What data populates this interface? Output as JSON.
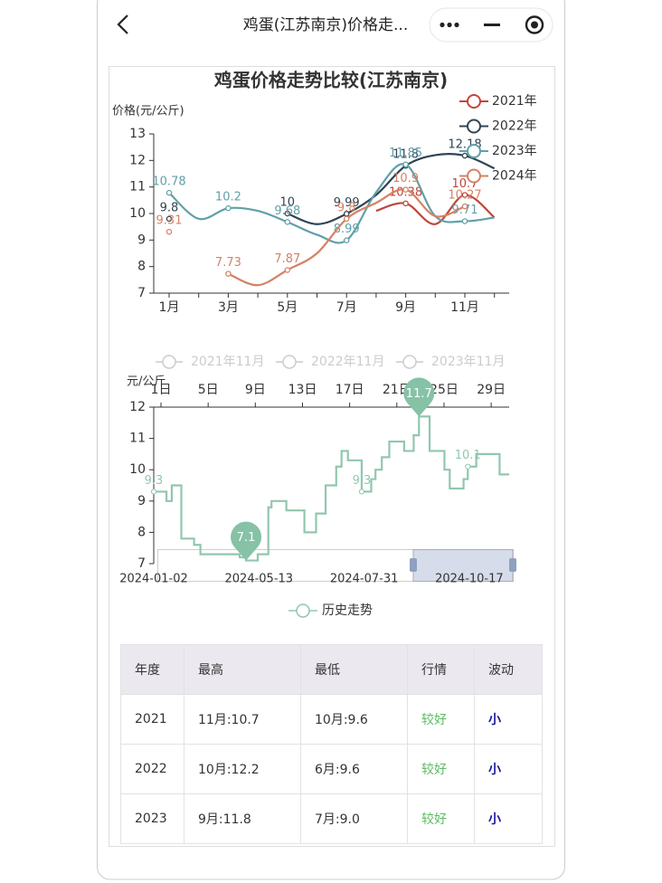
{
  "header": {
    "title": "鸡蛋(江苏南京)价格走..."
  },
  "chart_data": [
    {
      "type": "line",
      "title": "鸡蛋价格走势比较(江苏南京)",
      "y_label": "价格(元/公斤)",
      "categories": [
        "1月",
        null,
        "3月",
        null,
        "5月",
        null,
        "7月",
        null,
        "9月",
        null,
        "11月",
        null
      ],
      "series": [
        {
          "name": "2021年",
          "color": "#c0463c",
          "values": [
            null,
            null,
            null,
            null,
            null,
            null,
            null,
            10.1,
            10.38,
            9.6,
            10.7,
            9.85
          ]
        },
        {
          "name": "2022年",
          "color": "#2f4554",
          "values": [
            9.8,
            null,
            null,
            null,
            10,
            9.6,
            9.99,
            10.7,
            11.8,
            12.2,
            12.18,
            11.7
          ]
        },
        {
          "name": "2023年",
          "color": "#61a0a8",
          "values": [
            10.78,
            9.8,
            10.2,
            10.1,
            9.68,
            9.2,
            8.99,
            10.8,
            11.85,
            9.9,
            9.71,
            9.85
          ]
        },
        {
          "name": "2024年",
          "color": "#d48265",
          "values": [
            9.31,
            null,
            7.73,
            7.3,
            7.87,
            8.5,
            9.8,
            10.4,
            10.9,
            9.9,
            10.27,
            null
          ]
        }
      ],
      "ylim": [
        7,
        13
      ],
      "yticks": [
        7,
        8,
        9,
        10,
        11,
        12,
        13
      ],
      "legend": "top-right",
      "smooth": true,
      "grid": false
    },
    {
      "type": "step",
      "y_label": "元/公斤",
      "faded_legend": [
        "2021年11月",
        "2022年11月",
        "2023年11月"
      ],
      "day_axis": [
        "1日",
        null,
        null,
        null,
        "5日",
        null,
        null,
        null,
        "9日",
        null,
        null,
        null,
        "13日",
        null,
        null,
        null,
        "17日",
        null,
        null,
        null,
        "21日",
        null,
        null,
        null,
        "25日",
        null,
        null,
        null,
        "29日",
        null
      ],
      "series": [
        {
          "name": "历史走势",
          "color": "#91c7ae",
          "x": [
            "2024-01-02",
            "2024-01-14",
            "2024-01-19",
            "2024-01-28",
            "2024-02-09",
            "2024-02-15",
            "2024-03-23",
            "2024-03-29",
            "2024-04-09",
            "2024-04-19",
            "2024-04-22",
            "2024-05-06",
            "2024-05-23",
            "2024-06-03",
            "2024-06-12",
            "2024-06-22",
            "2024-06-27",
            "2024-07-03",
            "2024-07-16",
            "2024-07-25",
            "2024-07-29",
            "2024-08-04",
            "2024-08-11",
            "2024-08-25",
            "2024-09-03",
            "2024-09-08",
            "2024-09-18",
            "2024-10-02",
            "2024-10-07",
            "2024-10-20",
            "2024-10-24",
            "2024-11-01",
            "2024-11-23",
            "2024-12-02"
          ],
          "values": [
            9.3,
            9.0,
            9.5,
            7.8,
            7.6,
            7.3,
            7.2,
            7.1,
            7.3,
            8.8,
            9.0,
            8.7,
            8.0,
            8.6,
            9.5,
            10.1,
            10.6,
            10.3,
            9.3,
            9.7,
            10.0,
            10.4,
            10.9,
            10.6,
            11.1,
            11.7,
            10.6,
            10.0,
            9.4,
            9.7,
            10.1,
            10.5,
            9.85,
            9.85
          ]
        }
      ],
      "xlim": [
        "2024-01-02",
        "2024-12-02"
      ],
      "ylim": [
        7,
        12
      ],
      "yticks": [
        7,
        8,
        9,
        10,
        11,
        12
      ],
      "slider_labels": [
        "2024-01-02",
        "2024-05-13",
        "2024-07-31",
        "2024-10-17"
      ],
      "grid": false
    }
  ],
  "table": {
    "header": [
      "年度",
      "最高",
      "最低",
      "行情",
      "波动"
    ],
    "rows": [
      [
        "2021",
        "11月:10.7",
        "10月:9.6",
        "较好",
        "小"
      ],
      [
        "2022",
        "10月:12.2",
        "6月:9.6",
        "较好",
        "小"
      ],
      [
        "2023",
        "9月:11.8",
        "7月:9.0",
        "较好",
        "小"
      ]
    ]
  }
}
